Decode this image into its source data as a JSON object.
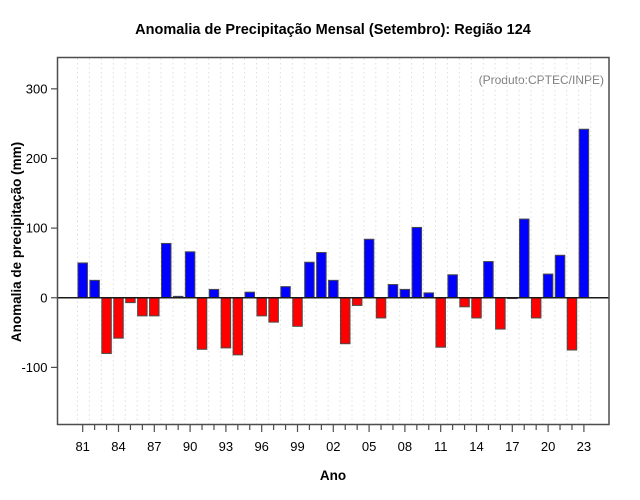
{
  "window": {
    "background": "#ffffff"
  },
  "chart_data": {
    "type": "bar",
    "title": "Anomalia de Precipitação Mensal (Setembro): Região 124",
    "xlabel": "Ano",
    "ylabel": "Anomalia de precipitação (mm)",
    "annotation": "(Produto:CPTEC/INPE)",
    "x": [
      1981,
      1982,
      1983,
      1984,
      1985,
      1986,
      1987,
      1988,
      1989,
      1990,
      1991,
      1992,
      1993,
      1994,
      1995,
      1996,
      1997,
      1998,
      1999,
      2000,
      2001,
      2002,
      2003,
      2004,
      2005,
      2006,
      2007,
      2008,
      2009,
      2010,
      2011,
      2012,
      2013,
      2014,
      2015,
      2016,
      2017,
      2018,
      2019,
      2020,
      2021,
      2022,
      2023
    ],
    "values": [
      50,
      25,
      -80,
      -58,
      -7,
      -26,
      -26,
      78,
      2,
      66,
      -74,
      12,
      -72,
      -82,
      8,
      -26,
      -35,
      16,
      -41,
      51,
      65,
      25,
      -66,
      -11,
      84,
      -29,
      19,
      12,
      101,
      7,
      -71,
      33,
      -13,
      -29,
      52,
      -45,
      -1,
      113,
      -29,
      34,
      61,
      -75,
      242
    ],
    "xtick_labels": [
      "81",
      "84",
      "87",
      "90",
      "93",
      "96",
      "99",
      "02",
      "05",
      "08",
      "11",
      "14",
      "17",
      "20",
      "23"
    ],
    "xtick_every": 3,
    "yticks": [
      -100,
      0,
      100,
      200,
      300
    ],
    "ylim": [
      -182,
      345
    ],
    "grid": "vertical-dashed",
    "legend": "none",
    "colors": {
      "positive_bar": "#0000ff",
      "negative_bar": "#ff0000",
      "bar_border": "#4a4a4a",
      "annotation_text": "#808080",
      "axis": "#4d4d4d",
      "tick": "#4d4d4d",
      "gridline": "#dedede",
      "zero_line": "#1a1a1a",
      "text": "#000000"
    }
  }
}
